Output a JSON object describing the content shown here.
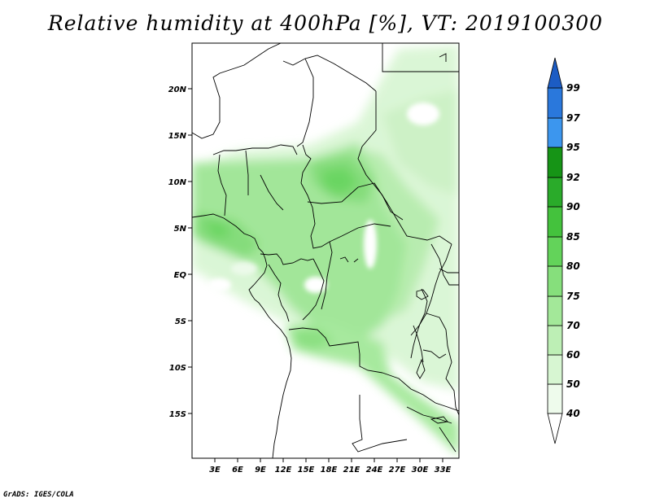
{
  "title": "Relative humidity at 400hPa [%], VT: 2019100300",
  "credit": "GrADS: IGES/COLA",
  "map": {
    "lat_ticks": [
      "20N",
      "15N",
      "10N",
      "5N",
      "EQ",
      "5S",
      "10S",
      "15S"
    ],
    "lon_ticks": [
      "3E",
      "6E",
      "9E",
      "12E",
      "15E",
      "18E",
      "21E",
      "24E",
      "27E",
      "30E",
      "33E"
    ]
  },
  "colorbar": {
    "levels": [
      "40",
      "50",
      "60",
      "70",
      "75",
      "80",
      "85",
      "90",
      "92",
      "95",
      "97",
      "99"
    ],
    "colors": {
      "40-50": "#eefbec",
      "50-60": "#d7f6d2",
      "60-70": "#bdefb5",
      "70-75": "#a3e899",
      "75-80": "#86df7c",
      "80-85": "#63d35a",
      "85-90": "#44c23d",
      "90-92": "#2aab2a",
      "92-95": "#169416",
      "95-97": "#3c96ee",
      "97-99": "#2a78dc",
      "99+": "#1c5cc4"
    }
  }
}
